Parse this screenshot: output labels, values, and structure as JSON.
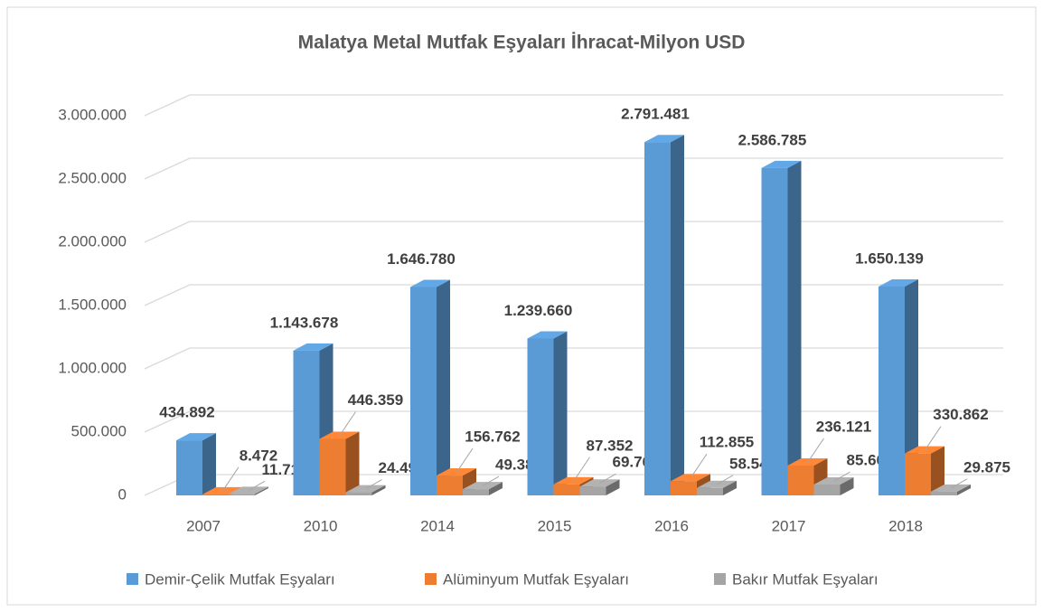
{
  "chart_data": {
    "type": "bar3d",
    "title": "Malatya Metal Mutfak Eşyaları İhracat-Milyon USD",
    "categories": [
      "2007",
      "2010",
      "2014",
      "2015",
      "2016",
      "2017",
      "2018"
    ],
    "series": [
      {
        "name": "Demir-Çelik Mutfak Eşyaları",
        "color": "#5b9bd5",
        "values": [
          434892,
          1143678,
          1646780,
          1239660,
          2791481,
          2586785,
          1650139
        ],
        "value_labels": [
          "434.892",
          "1.143.678",
          "1.646.780",
          "1.239.660",
          "2.791.481",
          "2.586.785",
          "1.650.139"
        ]
      },
      {
        "name": "Alüminyum Mutfak Eşyaları",
        "color": "#ed7d31",
        "values": [
          8472,
          446359,
          156762,
          87352,
          112855,
          236121,
          330862
        ],
        "value_labels": [
          "8.472",
          "446.359",
          "156.762",
          "87.352",
          "112.855",
          "236.121",
          "330.862"
        ]
      },
      {
        "name": "Bakır Mutfak Eşyaları",
        "color": "#a5a5a5",
        "values": [
          11715,
          24498,
          49384,
          69765,
          58545,
          85661,
          29875
        ],
        "value_labels": [
          "11.715",
          "24.498",
          "49.384",
          "69.765",
          "58.545",
          "85.661",
          "29.875"
        ]
      }
    ],
    "ylim": [
      0,
      3000000
    ],
    "yticks": [
      0,
      {
        "value": 500000,
        "label": "500.000"
      },
      {
        "value": 1000000,
        "label": "1.000.000"
      },
      {
        "value": 1500000,
        "label": "1.500.000"
      },
      {
        "value": 2000000,
        "label": "2.000.000"
      },
      {
        "value": 2500000,
        "label": "2.500.000"
      },
      {
        "value": 3000000,
        "label": "3.000.000"
      }
    ],
    "grid": true,
    "legend": "bottom"
  }
}
